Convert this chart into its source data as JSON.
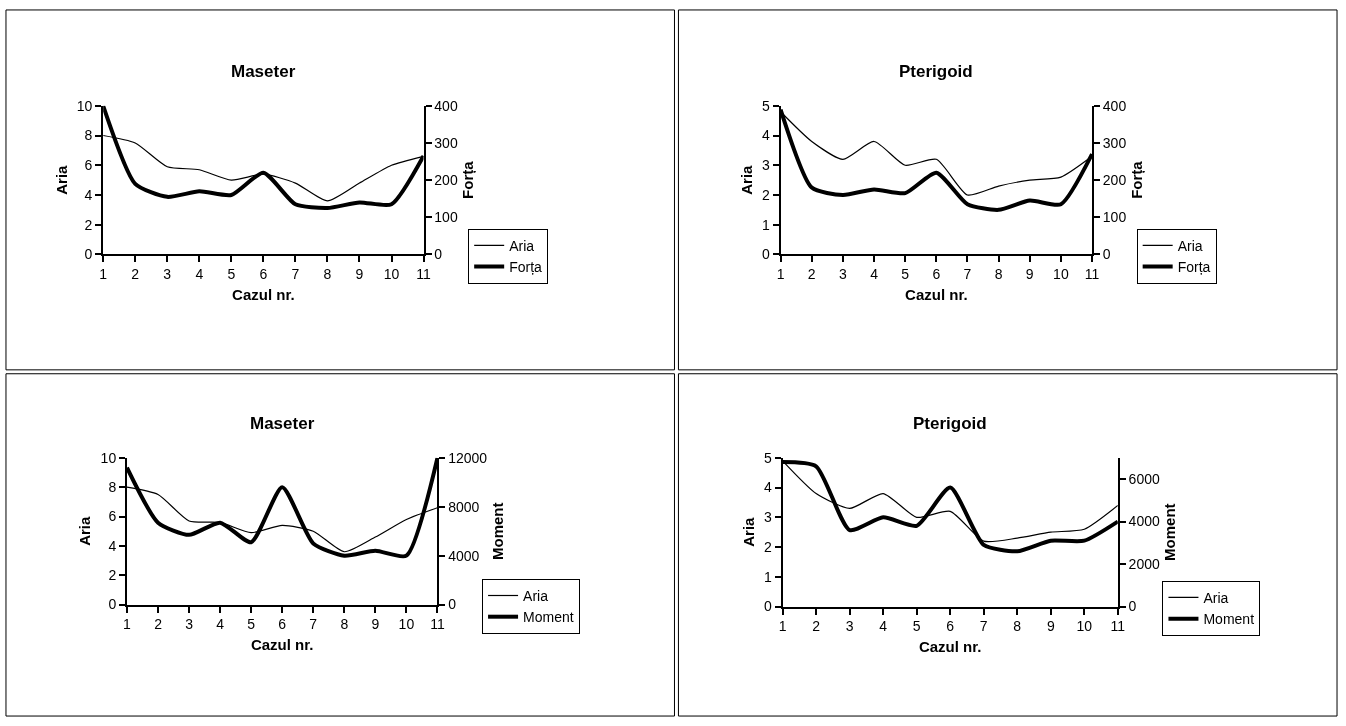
{
  "chart_data": [
    {
      "type": "line",
      "title": "Maseter",
      "xlabel": "Cazul nr.",
      "ylabel": "Aria",
      "y2label": "Forța",
      "x": [
        1,
        2,
        3,
        4,
        5,
        6,
        7,
        8,
        9,
        10,
        11
      ],
      "xlim": [
        1,
        11
      ],
      "xticks": [
        1,
        2,
        3,
        4,
        5,
        6,
        7,
        8,
        9,
        10,
        11
      ],
      "ylim": [
        0,
        10
      ],
      "yticks": [
        0,
        2,
        4,
        6,
        8,
        10
      ],
      "y2lim": [
        0,
        400
      ],
      "y2ticks": [
        0,
        100,
        200,
        300,
        400
      ],
      "legend": "bottom right",
      "series": [
        {
          "name": "Aria",
          "color": "#000000",
          "values": [
            8,
            7.5,
            5.9,
            5.7,
            5.0,
            5.4,
            4.8,
            3.6,
            4.8,
            6.0,
            6.6
          ]
        },
        {
          "name": "Forța",
          "color": "#000000",
          "axis": "y2",
          "values": [
            400,
            190,
            155,
            170,
            160,
            220,
            135,
            125,
            140,
            135,
            265
          ]
        }
      ]
    },
    {
      "type": "line",
      "title": "Pterigoid",
      "xlabel": "Cazul nr.",
      "ylabel": "Aria",
      "y2label": "Forța",
      "x": [
        1,
        2,
        3,
        4,
        5,
        6,
        7,
        8,
        9,
        10,
        11
      ],
      "xlim": [
        1,
        11
      ],
      "xticks": [
        1,
        2,
        3,
        4,
        5,
        6,
        7,
        8,
        9,
        10,
        11
      ],
      "ylim": [
        0,
        5
      ],
      "yticks": [
        0,
        1,
        2,
        3,
        4,
        5
      ],
      "y2lim": [
        0,
        400
      ],
      "y2ticks": [
        0,
        100,
        200,
        300,
        400
      ],
      "legend": "bottom right",
      "series": [
        {
          "name": "Aria",
          "color": "#000000",
          "values": [
            4.8,
            3.8,
            3.2,
            3.8,
            3.0,
            3.2,
            2.0,
            2.3,
            2.5,
            2.6,
            3.3
          ]
        },
        {
          "name": "Forța",
          "color": "#000000",
          "axis": "y2",
          "values": [
            390,
            180,
            160,
            175,
            165,
            220,
            135,
            120,
            145,
            135,
            270
          ]
        }
      ]
    },
    {
      "type": "line",
      "title": "Maseter",
      "xlabel": "Cazul nr.",
      "ylabel": "Aria",
      "y2label": "Moment",
      "x": [
        1,
        2,
        3,
        4,
        5,
        6,
        7,
        8,
        9,
        10,
        11
      ],
      "xlim": [
        1,
        11
      ],
      "xticks": [
        1,
        2,
        3,
        4,
        5,
        6,
        7,
        8,
        9,
        10,
        11
      ],
      "ylim": [
        0,
        10
      ],
      "yticks": [
        0,
        2,
        4,
        6,
        8,
        10
      ],
      "y2lim": [
        0,
        12000
      ],
      "y2ticks": [
        0,
        4000,
        8000,
        12000
      ],
      "legend": "bottom right",
      "series": [
        {
          "name": "Aria",
          "color": "#000000",
          "values": [
            8,
            7.5,
            5.7,
            5.6,
            4.9,
            5.4,
            5.0,
            3.6,
            4.6,
            5.8,
            6.6
          ]
        },
        {
          "name": "Moment",
          "color": "#000000",
          "axis": "y2",
          "values": [
            11200,
            6700,
            5700,
            6700,
            5100,
            9600,
            5000,
            4000,
            4400,
            4000,
            12000
          ]
        }
      ]
    },
    {
      "type": "line",
      "title": "Pterigoid",
      "xlabel": "Cazul nr.",
      "ylabel": "Aria",
      "y2label": "Moment",
      "x": [
        1,
        2,
        3,
        4,
        5,
        6,
        7,
        8,
        9,
        10,
        11
      ],
      "xlim": [
        1,
        11
      ],
      "xticks": [
        1,
        2,
        3,
        4,
        5,
        6,
        7,
        8,
        9,
        10,
        11
      ],
      "ylim": [
        0,
        5
      ],
      "yticks": [
        0,
        1,
        2,
        3,
        4,
        5
      ],
      "y2lim": [
        0,
        7000
      ],
      "y2ticks": [
        0,
        2000,
        4000,
        6000
      ],
      "legend": "bottom right",
      "series": [
        {
          "name": "Aria",
          "color": "#000000",
          "values": [
            4.9,
            3.8,
            3.3,
            3.8,
            3.0,
            3.2,
            2.2,
            2.3,
            2.5,
            2.6,
            3.4
          ]
        },
        {
          "name": "Moment",
          "color": "#000000",
          "axis": "y2",
          "values": [
            6800,
            6600,
            3600,
            4200,
            3800,
            5600,
            2900,
            2600,
            3100,
            3100,
            4000
          ]
        }
      ]
    }
  ]
}
